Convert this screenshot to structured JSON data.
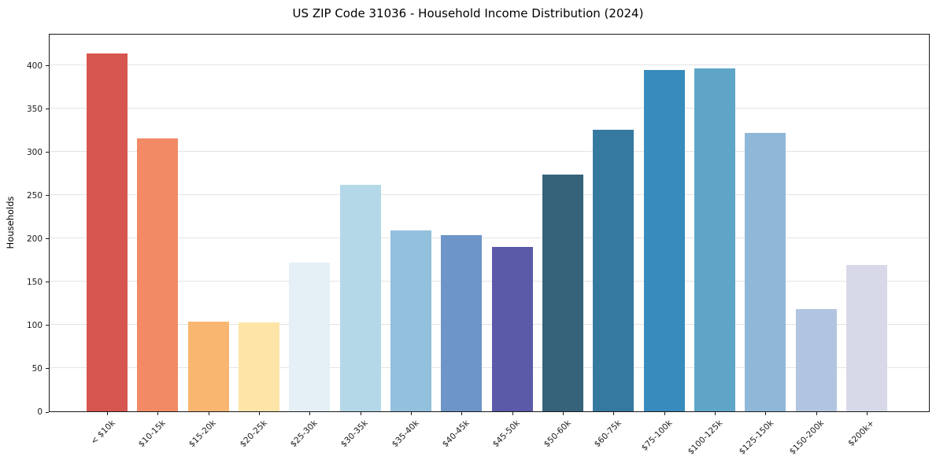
{
  "chart_data": {
    "type": "bar",
    "title": "US ZIP Code 31036 - Household Income Distribution (2024)",
    "xlabel": "",
    "ylabel": "Households",
    "categories": [
      "< $10k",
      "$10-15k",
      "$15-20k",
      "$20-25k",
      "$25-30k",
      "$30-35k",
      "$35-40k",
      "$40-45k",
      "$45-50k",
      "$50-60k",
      "$60-75k",
      "$75-100k",
      "$100-125k",
      "$125-150k",
      "$150-200k",
      "$200k+"
    ],
    "values": [
      415,
      317,
      104,
      103,
      172,
      263,
      210,
      204,
      191,
      275,
      327,
      396,
      398,
      323,
      119,
      170
    ],
    "bar_colors": [
      "#d6564f",
      "#f18a65",
      "#f9b671",
      "#fde5a7",
      "#e4f0f5",
      "#b5d8e8",
      "#93c0dd",
      "#6d95c7",
      "#5a5aa8",
      "#36637a",
      "#3679a0",
      "#388cbd",
      "#5ea5c7",
      "#8fb8d8",
      "#b2c5e0",
      "#d8d9e8"
    ],
    "yticks": [
      0,
      50,
      100,
      150,
      200,
      250,
      300,
      350,
      400
    ],
    "ytick_labels": [
      "0",
      "50",
      "100",
      "150",
      "200",
      "250",
      "300",
      "350",
      "400"
    ],
    "ylim": [
      0,
      437
    ],
    "grid": "horizontal",
    "legend": null,
    "background_color": "#ffffff"
  }
}
